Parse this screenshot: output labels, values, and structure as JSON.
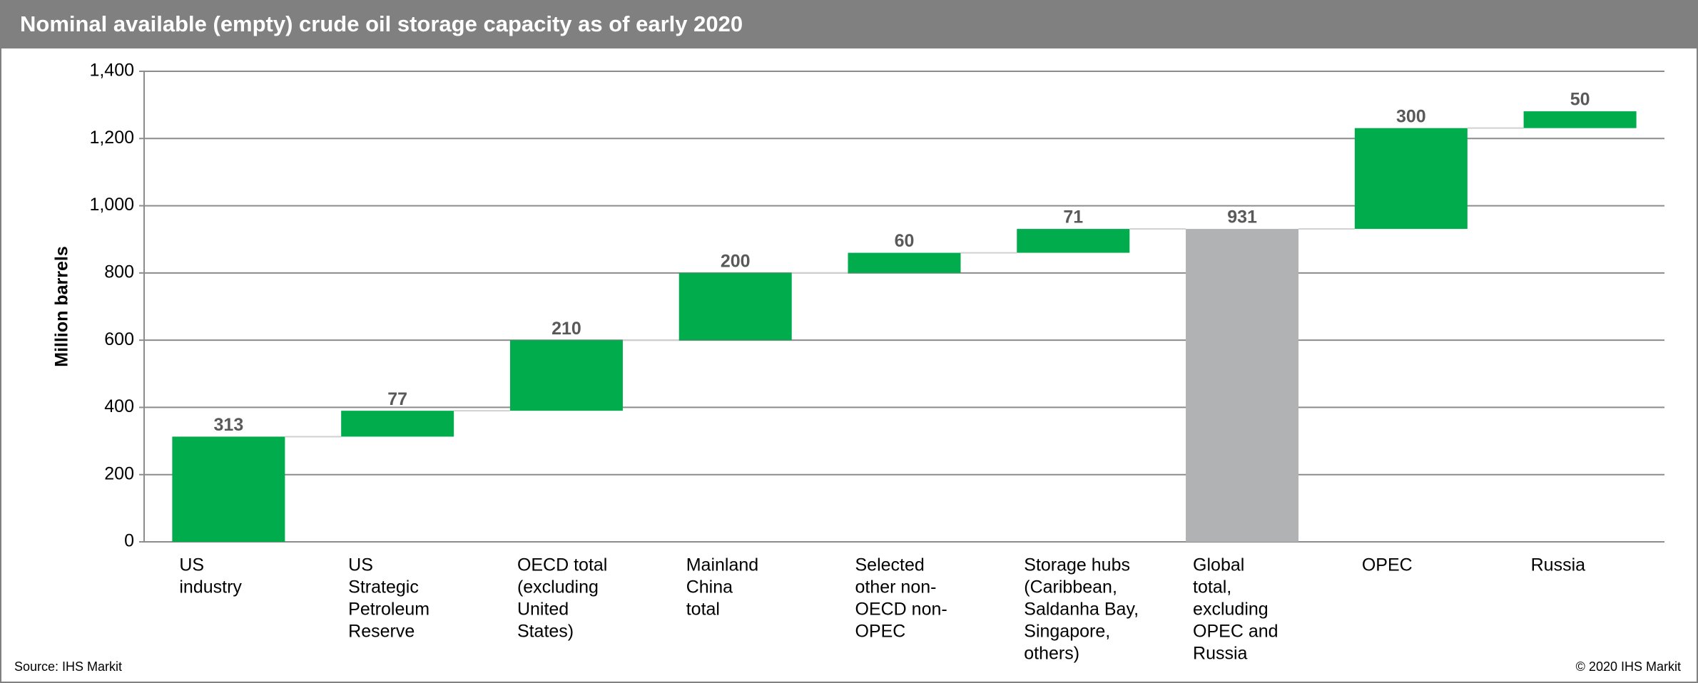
{
  "chart_data": {
    "type": "waterfall",
    "title": "Nominal available (empty) crude oil storage capacity as of early 2020",
    "ylabel": "Million barrels",
    "categories": [
      [
        "US",
        "industry"
      ],
      [
        "US",
        "Strategic",
        "Petroleum",
        "Reserve"
      ],
      [
        "OECD total",
        "(excluding",
        "United",
        "States)"
      ],
      [
        "Mainland",
        "China",
        "total"
      ],
      [
        "Selected",
        "other non-",
        "OECD non-",
        "OPEC"
      ],
      [
        "Storage hubs",
        "(Caribbean,",
        "Saldanha Bay,",
        "Singapore,",
        "others)"
      ],
      [
        "Global",
        "total,",
        "excluding",
        "OPEC and",
        "Russia"
      ],
      [
        "OPEC"
      ],
      [
        "Russia"
      ]
    ],
    "values": [
      313,
      77,
      210,
      200,
      60,
      71,
      931,
      300,
      50
    ],
    "totals": [
      false,
      false,
      false,
      false,
      false,
      false,
      true,
      false,
      false
    ],
    "color": "#00ac4c",
    "total_color": "#b1b2b4",
    "ylim": [
      0,
      1400
    ],
    "yticks": [
      0,
      200,
      400,
      600,
      800,
      {
        "value": 1000,
        "label": "1,000"
      },
      {
        "value": 1200,
        "label": "1,200"
      },
      {
        "value": 1400,
        "label": "1,400"
      }
    ],
    "grid": true,
    "source": "Source: IHS Markit",
    "copyright": "© 2020 IHS Markit"
  }
}
